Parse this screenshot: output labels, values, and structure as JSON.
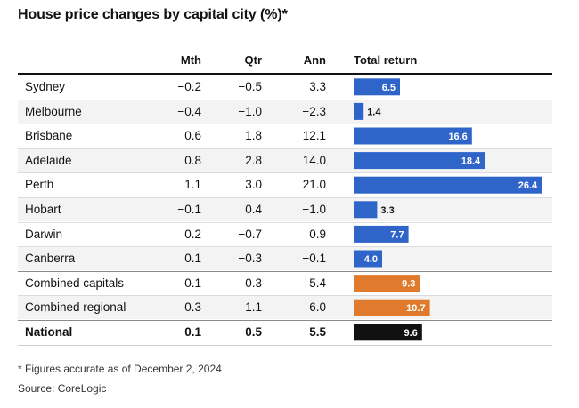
{
  "title": "House price changes by capital city (%)*",
  "headers": {
    "mth": "Mth",
    "qtr": "Qtr",
    "ann": "Ann",
    "total": "Total return"
  },
  "colors": {
    "city": "#2f64c9",
    "combined": "#e07a2c",
    "national": "#111111"
  },
  "chart_data": {
    "type": "table",
    "columns": [
      "Mth",
      "Qtr",
      "Ann",
      "Total return"
    ],
    "rows": [
      {
        "name": "Sydney",
        "mth": "−0.2",
        "qtr": "−0.5",
        "ann": "3.3",
        "total": 6.5,
        "total_label": "6.5",
        "group": "city"
      },
      {
        "name": "Melbourne",
        "mth": "−0.4",
        "qtr": "−1.0",
        "ann": "−2.3",
        "total": 1.4,
        "total_label": "1.4",
        "group": "city"
      },
      {
        "name": "Brisbane",
        "mth": "0.6",
        "qtr": "1.8",
        "ann": "12.1",
        "total": 16.6,
        "total_label": "16.6",
        "group": "city"
      },
      {
        "name": "Adelaide",
        "mth": "0.8",
        "qtr": "2.8",
        "ann": "14.0",
        "total": 18.4,
        "total_label": "18.4",
        "group": "city"
      },
      {
        "name": "Perth",
        "mth": "1.1",
        "qtr": "3.0",
        "ann": "21.0",
        "total": 26.4,
        "total_label": "26.4",
        "group": "city"
      },
      {
        "name": "Hobart",
        "mth": "−0.1",
        "qtr": "0.4",
        "ann": "−1.0",
        "total": 3.3,
        "total_label": "3.3",
        "group": "city"
      },
      {
        "name": "Darwin",
        "mth": "0.2",
        "qtr": "−0.7",
        "ann": "0.9",
        "total": 7.7,
        "total_label": "7.7",
        "group": "city"
      },
      {
        "name": "Canberra",
        "mth": "0.1",
        "qtr": "−0.3",
        "ann": "−0.1",
        "total": 4.0,
        "total_label": "4.0",
        "group": "city"
      },
      {
        "name": "Combined capitals",
        "mth": "0.1",
        "qtr": "0.3",
        "ann": "5.4",
        "total": 9.3,
        "total_label": "9.3",
        "group": "combined"
      },
      {
        "name": "Combined regional",
        "mth": "0.3",
        "qtr": "1.1",
        "ann": "6.0",
        "total": 10.7,
        "total_label": "10.7",
        "group": "combined"
      },
      {
        "name": "National",
        "mth": "0.1",
        "qtr": "0.5",
        "ann": "5.5",
        "total": 9.6,
        "total_label": "9.6",
        "group": "national"
      }
    ]
  },
  "footnote": "* Figures accurate as of December 2, 2024",
  "source": "Source: CoreLogic"
}
